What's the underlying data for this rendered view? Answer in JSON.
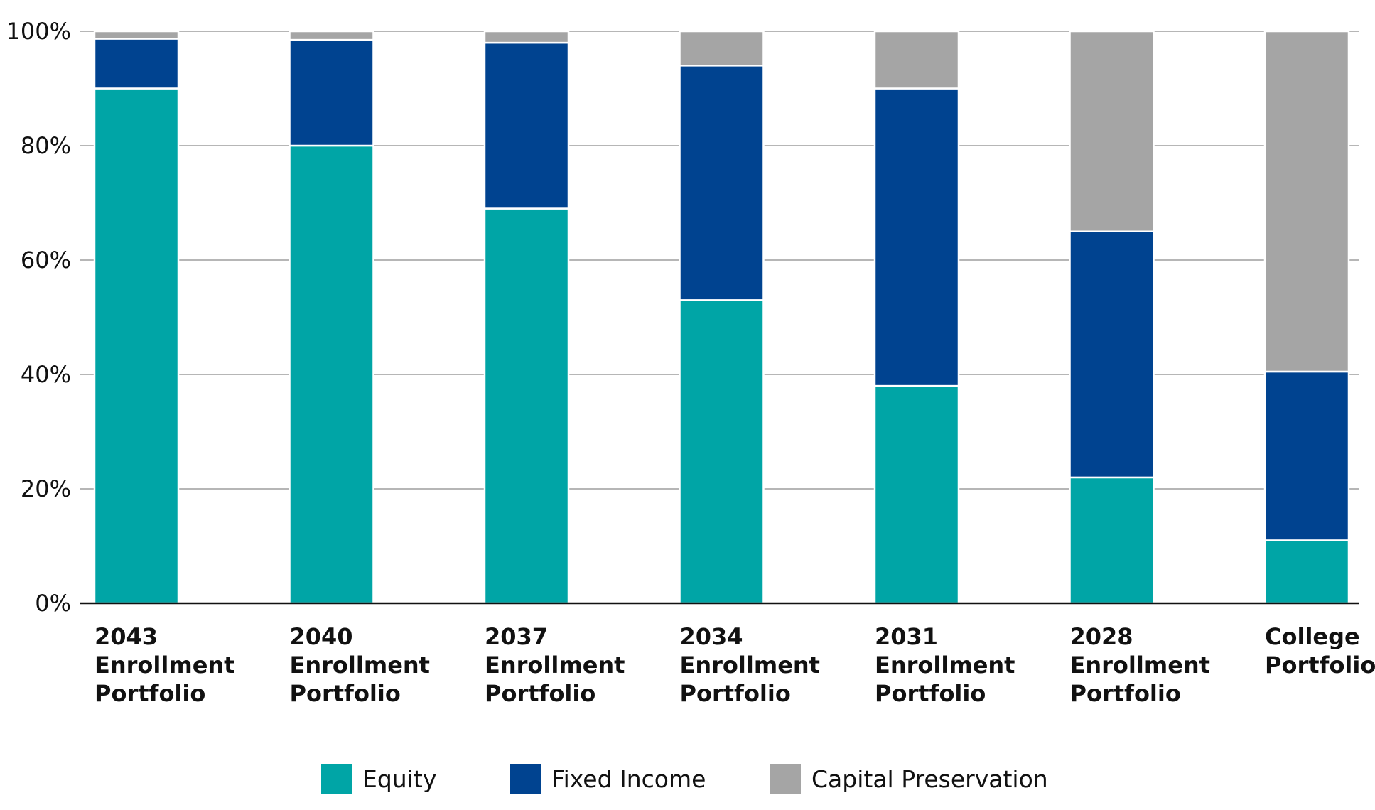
{
  "chart_data": {
    "type": "bar",
    "stacked": true,
    "title": "",
    "xlabel": "",
    "ylabel": "",
    "ylim": [
      0,
      100
    ],
    "yticks": [
      "0%",
      "20%",
      "40%",
      "60%",
      "80%",
      "100%"
    ],
    "categories": [
      [
        "2043",
        "Enrollment",
        "Portfolio"
      ],
      [
        "2040",
        "Enrollment",
        "Portfolio"
      ],
      [
        "2037",
        "Enrollment",
        "Portfolio"
      ],
      [
        "2034",
        "Enrollment",
        "Portfolio"
      ],
      [
        "2031",
        "Enrollment",
        "Portfolio"
      ],
      [
        "2028",
        "Enrollment",
        "Portfolio"
      ],
      [
        "College",
        "Portfolio"
      ]
    ],
    "series": [
      {
        "name": "Equity",
        "color": "#00A5A6",
        "values": [
          90,
          80,
          69,
          53,
          38,
          22,
          11
        ]
      },
      {
        "name": "Fixed Income",
        "color": "#004390",
        "values": [
          8.7,
          18.5,
          29,
          41,
          52,
          43,
          29.5
        ]
      },
      {
        "name": "Capital Preservation",
        "color": "#A5A5A5",
        "values": [
          1.3,
          1.5,
          2,
          6,
          10,
          35,
          59.5
        ]
      }
    ],
    "grid": true,
    "legend_position": "bottom-center"
  }
}
